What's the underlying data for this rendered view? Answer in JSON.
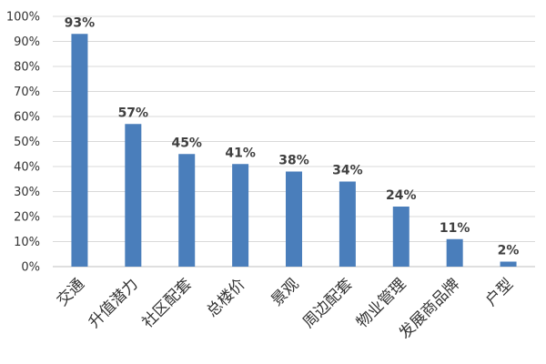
{
  "chart_data": {
    "type": "bar",
    "categories": [
      "交通",
      "升值潜力",
      "社区配套",
      "总楼价",
      "景观",
      "周边配套",
      "物业管理",
      "发展商品牌",
      "户型"
    ],
    "values": [
      93,
      57,
      45,
      41,
      38,
      34,
      24,
      11,
      2
    ],
    "data_labels": [
      "93%",
      "57%",
      "45%",
      "41%",
      "38%",
      "34%",
      "24%",
      "11%",
      "2%"
    ],
    "y_ticks": [
      "0%",
      "10%",
      "20%",
      "30%",
      "40%",
      "50%",
      "60%",
      "70%",
      "80%",
      "90%",
      "100%"
    ],
    "ylim": [
      0,
      100
    ],
    "grid": true,
    "legend": "none",
    "bar_color": "#4a7ebb",
    "title": "",
    "xlabel": "",
    "ylabel": ""
  }
}
